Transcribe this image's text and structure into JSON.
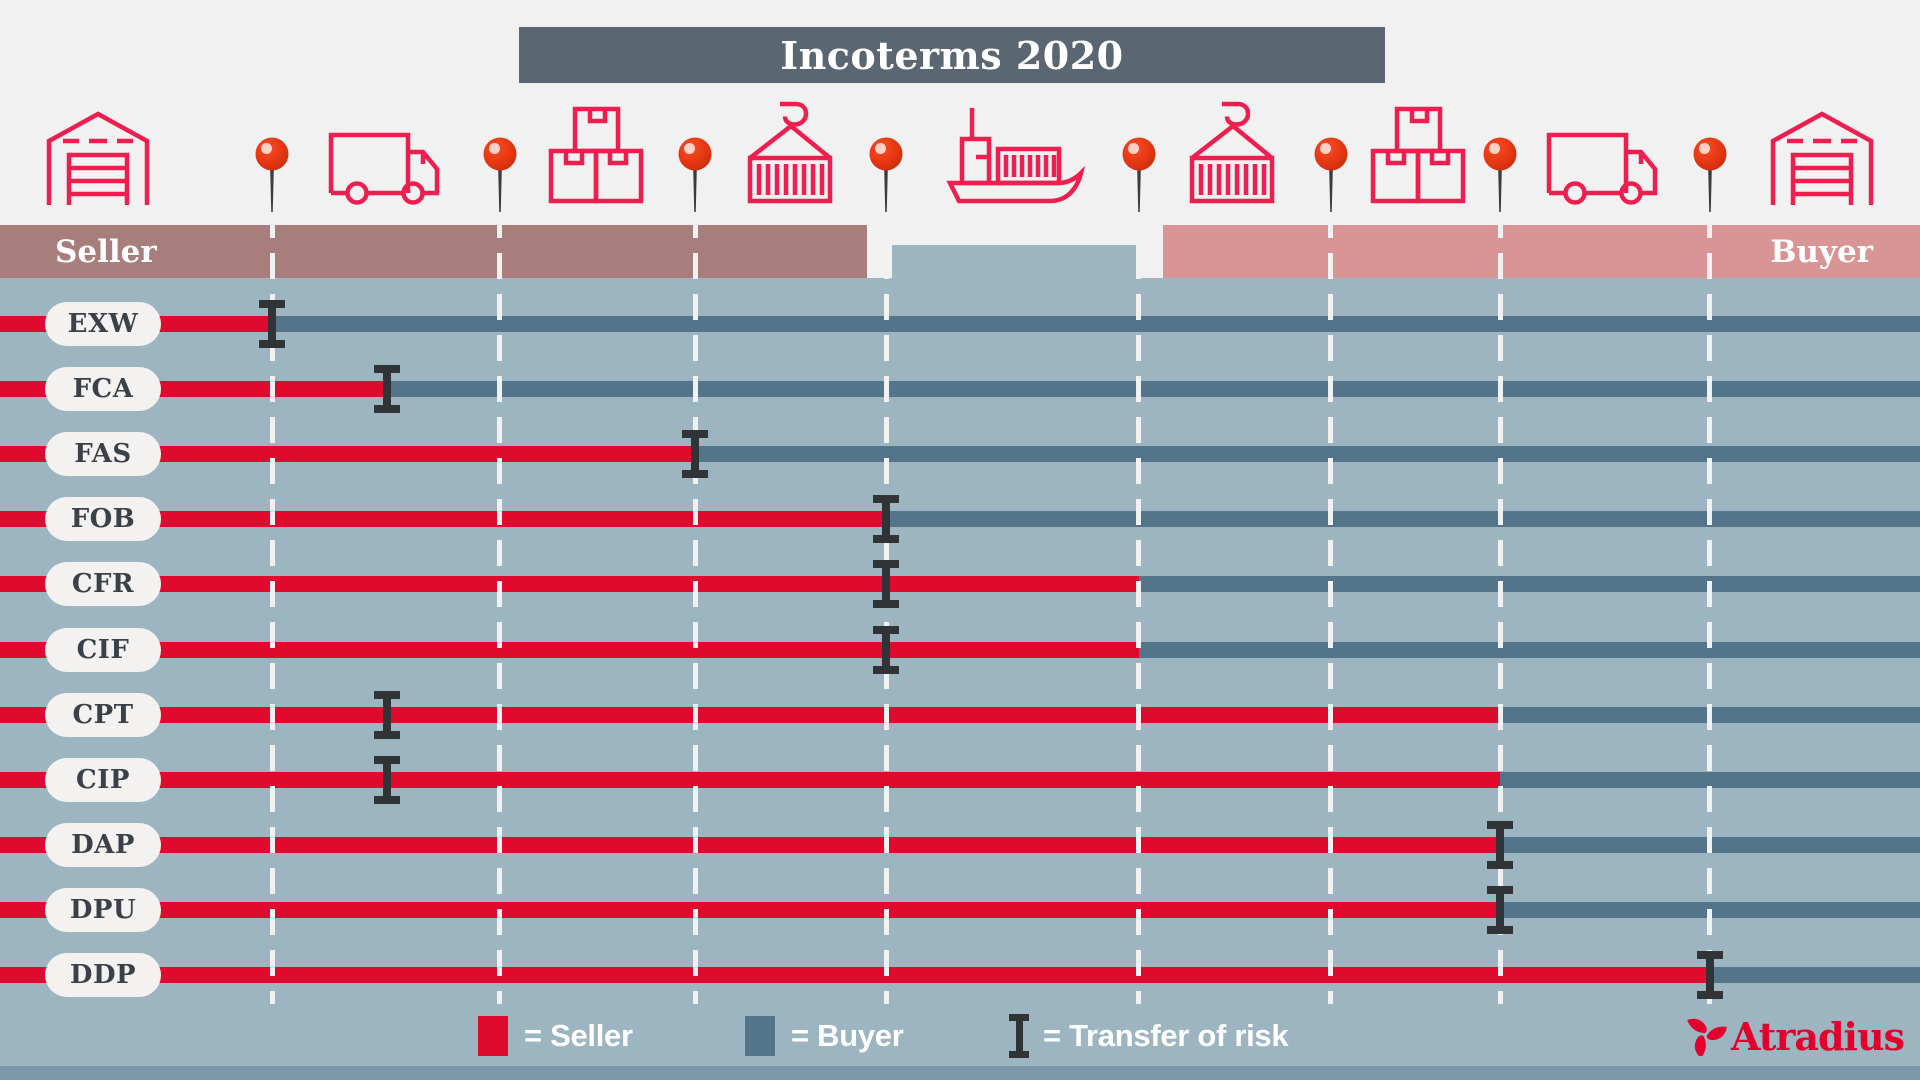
{
  "title": "Incoterms 2020",
  "header": {
    "seller_label": "Seller",
    "buyer_label": "Buyer"
  },
  "brand": "Atradius",
  "colors": {
    "seller_red": "#e00a2e",
    "buyer_slate": "#54748a",
    "icon_red": "#ee1f4e",
    "pin_red": "#e73712",
    "seller_band_mauve": "#a77e7b",
    "buyer_band_pink": "#d99595",
    "chart_background_blue": "#9db4c1",
    "title_background": "#5b6673",
    "risk_marker_dark": "#313437",
    "brand_red": "#e2002d"
  },
  "timeline": {
    "pins": [
      {
        "name": "risk-point-1",
        "x": 0.1417
      },
      {
        "name": "risk-point-2",
        "x": 0.2604
      },
      {
        "name": "risk-point-3",
        "x": 0.362
      },
      {
        "name": "risk-point-4",
        "x": 0.4615
      },
      {
        "name": "risk-point-5",
        "x": 0.5932
      },
      {
        "name": "risk-point-6",
        "x": 0.6932
      },
      {
        "name": "risk-point-7",
        "x": 0.7813
      },
      {
        "name": "risk-point-8",
        "x": 0.8906
      }
    ],
    "icons": [
      {
        "type": "warehouse",
        "x": 0.051
      },
      {
        "type": "truck",
        "x": 0.201
      },
      {
        "type": "boxes",
        "x": 0.3105
      },
      {
        "type": "container-crane",
        "x": 0.4115
      },
      {
        "type": "cargo-ship",
        "x": 0.5287
      },
      {
        "type": "container-crane",
        "x": 0.6415
      },
      {
        "type": "boxes",
        "x": 0.7385
      },
      {
        "type": "truck",
        "x": 0.8355
      },
      {
        "type": "warehouse",
        "x": 0.949
      }
    ]
  },
  "rows": [
    {
      "code": "EXW",
      "red_end": 0.1417,
      "marker": 0.1417
    },
    {
      "code": "FCA",
      "red_end": 0.2016,
      "marker": 0.2016
    },
    {
      "code": "FAS",
      "red_end": 0.362,
      "marker": 0.362
    },
    {
      "code": "FOB",
      "red_end": 0.4615,
      "marker": 0.4615
    },
    {
      "code": "CFR",
      "red_end": 0.5932,
      "marker": 0.4615
    },
    {
      "code": "CIF",
      "red_end": 0.5932,
      "marker": 0.4615
    },
    {
      "code": "CPT",
      "red_end": 0.7813,
      "marker": 0.2016
    },
    {
      "code": "CIP",
      "red_end": 0.7813,
      "marker": 0.2016
    },
    {
      "code": "DAP",
      "red_end": 0.7813,
      "marker": 0.7813
    },
    {
      "code": "DPU",
      "red_end": 0.7813,
      "marker": 0.7813
    },
    {
      "code": "DDP",
      "red_end": 0.8906,
      "marker": 0.8906
    }
  ],
  "legend": {
    "items": [
      {
        "type": "seller-swatch",
        "label": "= Seller"
      },
      {
        "type": "buyer-swatch",
        "label": "= Buyer"
      },
      {
        "type": "risk-ibeam",
        "label": "= Transfer of risk"
      }
    ]
  }
}
